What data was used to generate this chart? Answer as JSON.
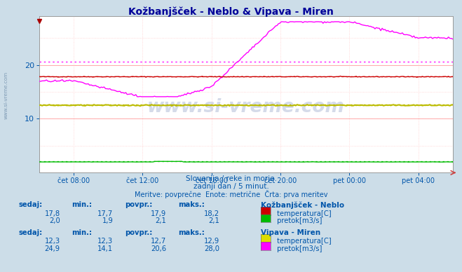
{
  "title": "Kožbanjšček - Neblo & Vipava - Miren",
  "title_color": "#000099",
  "background_color": "#ccdde8",
  "plot_bg_color": "#ffffff",
  "grid_color": "#ffaaaa",
  "grid_dot_color": "#ffcccc",
  "text_color": "#0055aa",
  "axis_color": "#0055aa",
  "subtitle1": "Slovenija / reke in morje.",
  "subtitle2": "zadnji dan / 5 minut.",
  "subtitle3": "Meritve: povprečne  Enote: metrične  Črta: prva meritev",
  "x_tick_labels": [
    "čet 08:00",
    "čet 12:00",
    "čet 16:00",
    "čet 20:00",
    "pet 00:00",
    "pet 04:00"
  ],
  "x_tick_pos": [
    120,
    360,
    600,
    840,
    1080,
    1320
  ],
  "x_min": 0,
  "x_max": 1440,
  "ylim_min": 0,
  "ylim_max": 29,
  "yticks": [
    10,
    20
  ],
  "kozb_temp_color": "#cc0000",
  "kozb_pretok_color": "#00bb00",
  "vip_temp_color": "#bbbb00",
  "vip_pretok_color": "#ff00ff",
  "kozb_temp_avg": 17.9,
  "kozb_pretok_avg": 2.1,
  "vip_temp_avg": 12.7,
  "vip_pretok_avg": 20.6,
  "watermark": "www.si-vreme.com",
  "watermark_color": "#1a3a8a",
  "watermark_alpha": 0.18,
  "left_label": "www.si-vreme.com",
  "kozb_temp_sedaj": "17,8",
  "kozb_temp_min": "17,7",
  "kozb_temp_povpr": "17,9",
  "kozb_temp_maks": "18,2",
  "kozb_pretok_sedaj": "2,0",
  "kozb_pretok_min": "1,9",
  "kozb_pretok_povpr": "2,1",
  "kozb_pretok_maks": "2,1",
  "vip_temp_sedaj": "12,3",
  "vip_temp_min": "12,3",
  "vip_temp_povpr": "12,7",
  "vip_temp_maks": "12,9",
  "vip_pretok_sedaj": "24,9",
  "vip_pretok_min": "14,1",
  "vip_pretok_povpr": "20,6",
  "vip_pretok_maks": "28,0",
  "legend_kozb_temp_color": "#cc0000",
  "legend_kozb_pretok_color": "#00bb00",
  "legend_vip_temp_color": "#dddd00",
  "legend_vip_pretok_color": "#ff00ff"
}
